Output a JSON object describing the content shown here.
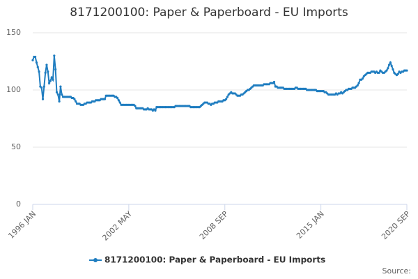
{
  "chart_data": {
    "type": "line",
    "title": "8171200100: Paper & Paperboard - EU Imports",
    "source": "Source:",
    "ylim": [
      0,
      150
    ],
    "yticks": [
      0,
      50,
      100,
      150
    ],
    "grid": true,
    "categories": [
      "1996 JAN",
      null,
      null,
      null,
      null,
      null,
      null,
      null,
      null,
      null,
      null,
      null,
      null,
      null,
      null,
      null,
      null,
      null,
      null,
      null,
      null,
      null,
      null,
      null,
      null,
      null,
      null,
      null,
      null,
      null,
      null,
      null,
      null,
      null,
      null,
      null,
      null,
      null,
      null,
      null,
      null,
      null,
      null,
      null,
      null,
      null,
      null,
      null,
      null,
      null,
      null,
      null,
      null,
      null,
      null,
      null,
      null,
      null,
      null,
      null,
      null,
      null,
      null,
      null,
      null,
      null,
      null,
      null,
      null,
      null,
      null,
      null,
      null,
      null,
      null,
      null,
      "2002 MAY",
      null,
      null,
      null,
      null,
      null,
      null,
      null,
      null,
      null,
      null,
      null,
      null,
      null,
      null,
      null,
      null,
      null,
      null,
      null,
      null,
      null,
      null,
      null,
      null,
      null,
      null,
      null,
      null,
      null,
      null,
      null,
      null,
      null,
      null,
      null,
      null,
      null,
      null,
      null,
      null,
      null,
      null,
      null,
      null,
      null,
      null,
      null,
      null,
      null,
      null,
      null,
      null,
      null,
      null,
      null,
      null,
      null,
      null,
      null,
      null,
      null,
      null,
      null,
      null,
      null,
      null,
      null,
      null,
      null,
      null,
      null,
      null,
      null,
      null,
      null,
      "2008 SEP",
      null,
      null,
      null,
      null,
      null,
      null,
      null,
      null,
      null,
      null,
      null,
      null,
      null,
      null,
      null,
      null,
      null,
      null,
      null,
      null,
      null,
      null,
      null,
      null,
      null,
      null,
      null,
      null,
      null,
      null,
      null,
      null,
      null,
      null,
      null,
      null,
      null,
      null,
      null,
      null,
      null,
      null,
      null,
      null,
      null,
      null,
      null,
      null,
      null,
      null,
      null,
      null,
      null,
      null,
      null,
      null,
      null,
      null,
      null,
      null,
      null,
      null,
      null,
      null,
      null,
      null,
      null,
      null,
      null,
      null,
      null,
      null,
      null,
      null,
      null,
      "2015 JAN",
      null,
      null,
      null,
      null,
      null,
      null,
      null,
      null,
      null,
      null,
      null,
      null,
      null,
      null,
      null,
      null,
      null,
      null,
      null,
      null,
      null,
      null,
      null,
      null,
      null,
      null,
      null,
      null,
      null,
      null,
      null,
      null,
      null,
      null,
      null,
      null,
      null,
      null,
      null,
      null,
      null,
      null,
      null,
      null,
      null,
      null,
      null,
      null,
      null,
      null,
      null,
      null,
      null,
      null,
      null,
      null,
      null,
      null,
      null,
      null,
      null,
      null,
      null,
      null,
      null,
      null,
      null,
      "2020 SEP"
    ],
    "series": [
      {
        "name": "8171200100: Paper & Paperboard - EU Imports",
        "color": "#1f7dc0",
        "values": [
          126,
          129,
          129,
          124,
          120,
          116,
          103,
          102,
          92,
          103,
          115,
          122,
          116,
          106,
          108,
          111,
          109,
          130,
          118,
          98,
          96,
          90,
          103,
          96,
          94,
          94,
          94,
          94,
          94,
          94,
          94,
          93,
          93,
          92,
          90,
          88,
          88,
          88,
          87,
          87,
          87,
          88,
          88,
          89,
          89,
          89,
          89,
          90,
          90,
          90,
          91,
          91,
          91,
          91,
          92,
          92,
          92,
          92,
          95,
          95,
          95,
          95,
          95,
          95,
          95,
          94,
          94,
          93,
          91,
          89,
          87,
          87,
          87,
          87,
          87,
          87,
          87,
          87,
          87,
          87,
          87,
          86,
          84,
          84,
          84,
          84,
          84,
          84,
          83,
          83,
          83,
          84,
          83,
          83,
          83,
          82,
          83,
          82,
          85,
          85,
          85,
          85,
          85,
          85,
          85,
          85,
          85,
          85,
          85,
          85,
          85,
          85,
          85,
          86,
          86,
          86,
          86,
          86,
          86,
          86,
          86,
          86,
          86,
          86,
          86,
          85,
          85,
          85,
          85,
          85,
          85,
          85,
          85,
          86,
          87,
          88,
          89,
          89,
          89,
          88,
          88,
          87,
          88,
          88,
          89,
          89,
          89,
          90,
          90,
          90,
          90,
          91,
          91,
          92,
          94,
          96,
          97,
          98,
          97,
          97,
          97,
          96,
          95,
          95,
          95,
          96,
          96,
          97,
          98,
          99,
          100,
          100,
          101,
          102,
          103,
          104,
          104,
          104,
          104,
          104,
          104,
          104,
          104,
          105,
          105,
          105,
          105,
          105,
          106,
          106,
          106,
          107,
          103,
          103,
          102,
          102,
          102,
          102,
          102,
          101,
          101,
          101,
          101,
          101,
          101,
          101,
          101,
          101,
          102,
          102,
          101,
          101,
          101,
          101,
          101,
          101,
          101,
          100,
          100,
          100,
          100,
          100,
          100,
          100,
          100,
          99,
          99,
          99,
          99,
          99,
          99,
          98,
          98,
          97,
          96,
          96,
          96,
          96,
          96,
          96,
          97,
          96,
          97,
          97,
          98,
          97,
          98,
          99,
          100,
          100,
          101,
          101,
          101,
          102,
          102,
          102,
          103,
          104,
          106,
          109,
          109,
          110,
          112,
          113,
          114,
          115,
          115,
          115,
          116,
          116,
          116,
          115,
          116,
          115,
          115,
          117,
          116,
          115,
          115,
          116,
          117,
          119,
          122,
          124,
          121,
          118,
          115,
          114,
          113,
          114,
          116,
          115,
          116,
          116,
          117,
          117,
          117
        ]
      }
    ]
  }
}
